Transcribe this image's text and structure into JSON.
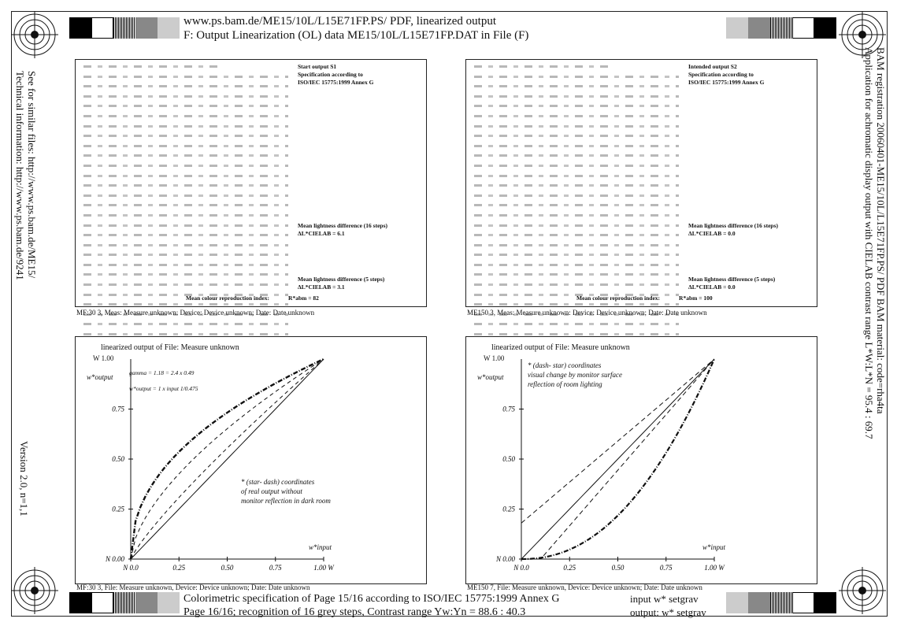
{
  "header": {
    "line1": "www.ps.bam.de/ME15/10L/L15E71FP.PS/ PDF, linearized output",
    "line2": "F: Output Linearization (OL) data ME15/10L/L15E71FP.DAT in File (F)"
  },
  "left_vertical": {
    "line1": "See for similar files: http://www.ps.bam.de/ME15/",
    "line2": "Technical information: http://www.ps.bam.de/9241",
    "version": "Version 2.0, n=1,1"
  },
  "right_vertical": {
    "line1": "BAM registration 20060401-ME15/10L/L15E71FP.PS/ PDF     BAM material: code=rha4ta",
    "line2": "Application for achromatic display output with CIELAB contrast range L*W:L*N = 95.4 : 69.7"
  },
  "footer": {
    "line1": "Colorimetric specification of Page 15/16 according to ISO/IEC 15775:1999 Annex G",
    "line2": "Page 16/16; recognition of 16 grey steps, Contrast range Yw:Yn = 88.6 : 40.3",
    "input_label": "input  w* setgrav",
    "output_label": "output: w* setgrav"
  },
  "table_left": {
    "start_label": "Start output S1",
    "spec_line1": "Specification according to",
    "spec_line2": "ISO/IEC 15775:1999 Annex G",
    "mean16_label": "Mean lightness difference (16 steps)",
    "mean16_value": "ΔL*CIELAB =   6.1",
    "mean5_label": "Mean lightness difference (5 steps)",
    "mean5_value": "ΔL*CIELAB =   3.1",
    "repro_label": "Mean colour reproduction index:",
    "repro_value": "R*abm =  82",
    "caption": "MF:30 3, Meas: Measure unknown: Device: Device unknown; Date: Date unknown"
  },
  "table_right": {
    "start_label": "Intended output S2",
    "spec_line1": "Specification according to",
    "spec_line2": "ISO/IEC 15775:1999 Annex G",
    "mean16_label": "Mean lightness difference (16 steps)",
    "mean16_value": "ΔL*CIELAB =   0.0",
    "mean5_label": "Mean lightness difference (5 steps)",
    "mean5_value": "ΔL*CIELAB =   0.0",
    "repro_label": "Mean colour reproduction index:",
    "repro_value": "R*abm =  100",
    "caption": "ME150 3, Meas: Measure unknown: Device: Device unknown; Date: Date unknown"
  },
  "plot_left": {
    "title": "linearized output of File: Measure unknown",
    "y_top": "W 1.00",
    "y_label": "w*output",
    "formula1": "gamma = 1.18 = 2.4 x 0.49",
    "formula2": "w*output = 1 x input 1/0.475",
    "note1": "* (star- dash) coordinates",
    "note2": "of real output without",
    "note3": "monitor reflection in dark room",
    "x_label": "w*input",
    "caption": "MF:30 3, File: Measure unknown, Device: Device unknown; Date: Date unknown",
    "yticks": [
      "0.75",
      "0.50",
      "0.25",
      "N 0.00"
    ],
    "xticks": [
      "N 0.0",
      "0.25",
      "0.50",
      "0.75",
      "1.00 W"
    ]
  },
  "plot_right": {
    "title": "linearized output of File: Measure unknown",
    "y_top": "W 1.00",
    "y_label": "w*output",
    "note1": "* (dash- star) coordinates",
    "note2": "visual change by monitor surface",
    "note3": "reflection of room lighting",
    "x_label": "w*input",
    "caption": "ME150 7, File: Measure unknown, Device: Device unknown; Date: Date unknown",
    "yticks": [
      "0.75",
      "0.50",
      "0.25",
      "N 0.00"
    ],
    "xticks": [
      "N 0.0",
      "0.25",
      "0.50",
      "0.75",
      "1.00 W"
    ]
  },
  "colors": {
    "ink": "#111111",
    "grid": "#222222"
  }
}
